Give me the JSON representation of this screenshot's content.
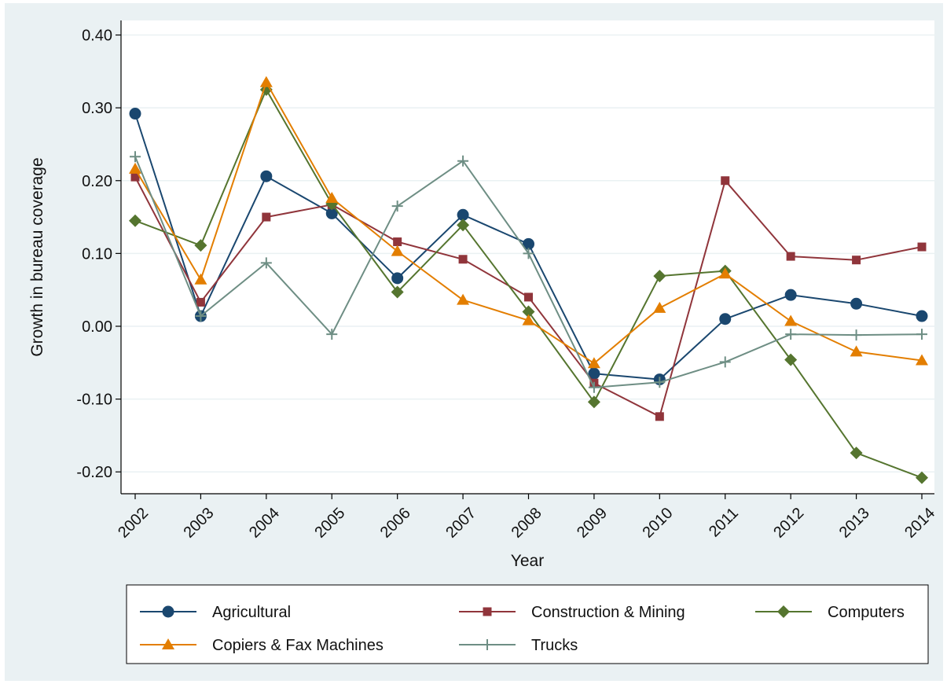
{
  "chart_data": {
    "type": "line",
    "title": "",
    "xlabel": "Year",
    "ylabel": "Growth in bureau coverage",
    "x": [
      "2002",
      "2003",
      "2004",
      "2005",
      "2006",
      "2007",
      "2008",
      "2009",
      "2010",
      "2011",
      "2012",
      "2013",
      "2014"
    ],
    "ylim": [
      -0.23,
      0.42
    ],
    "yticks": [
      0.4,
      0.3,
      0.2,
      0.1,
      0.0,
      -0.1,
      -0.2
    ],
    "ytick_labels": [
      "0.40",
      "0.30",
      "0.20",
      "0.10",
      "0.00",
      "-0.10",
      "-0.20"
    ],
    "grid": true,
    "legend_position": "bottom",
    "series": [
      {
        "name": "Agricultural",
        "color": "#1a476f",
        "marker": "circle",
        "values": [
          0.292,
          0.014,
          0.206,
          0.155,
          0.066,
          0.153,
          0.113,
          -0.065,
          -0.073,
          0.01,
          0.043,
          0.031,
          0.014
        ]
      },
      {
        "name": "Construction & Mining",
        "color": "#90353b",
        "marker": "square",
        "values": [
          0.205,
          0.033,
          0.15,
          0.167,
          0.116,
          0.092,
          0.04,
          -0.078,
          -0.124,
          0.2,
          0.096,
          0.091,
          0.109
        ]
      },
      {
        "name": "Computers",
        "color": "#55752f",
        "marker": "diamond",
        "values": [
          0.145,
          0.111,
          0.325,
          0.168,
          0.047,
          0.139,
          0.02,
          -0.104,
          0.069,
          0.076,
          -0.046,
          -0.174,
          -0.208
        ]
      },
      {
        "name": "Copiers & Fax Machines",
        "color": "#e37e00",
        "marker": "triangle",
        "values": [
          0.216,
          0.064,
          0.335,
          0.176,
          0.103,
          0.036,
          0.008,
          -0.051,
          0.025,
          0.072,
          0.007,
          -0.035,
          -0.047
        ]
      },
      {
        "name": "Trucks",
        "color": "#6e8e84",
        "marker": "plus",
        "values": [
          0.233,
          0.014,
          0.087,
          -0.011,
          0.165,
          0.227,
          0.1,
          -0.084,
          -0.077,
          -0.049,
          -0.011,
          -0.012,
          -0.011
        ]
      }
    ]
  }
}
